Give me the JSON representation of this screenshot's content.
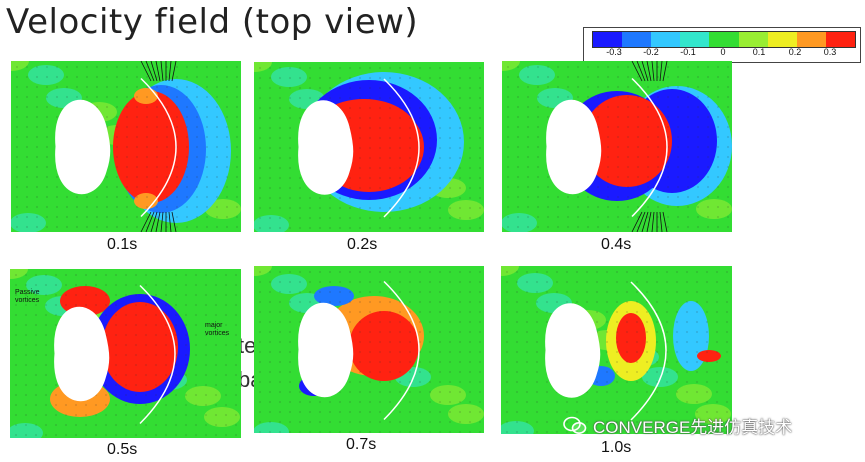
{
  "title": "Velocity field (top view)",
  "colorbar": {
    "colors": [
      "#1a1aff",
      "#1e78ff",
      "#33c8ff",
      "#33e6cc",
      "#33dd33",
      "#99ee33",
      "#eeee22",
      "#ff9922",
      "#ff2211"
    ],
    "labels": [
      "-0.3",
      "-0.2",
      "-0.1",
      "0",
      "0.1",
      "0.2",
      "0.3"
    ]
  },
  "panels": [
    {
      "caption": "0.1s"
    },
    {
      "caption": "0.2s"
    },
    {
      "caption": "0.4s"
    },
    {
      "caption": "0.5s",
      "annotations": {
        "passive": "Passive\nvortices",
        "major": "major\nvortices"
      }
    },
    {
      "caption": "0.7s"
    },
    {
      "caption": "1.0s"
    }
  ],
  "background_fragments": [
    "te",
    "ba"
  ],
  "watermark": "CONVERGE先进仿真技术"
}
